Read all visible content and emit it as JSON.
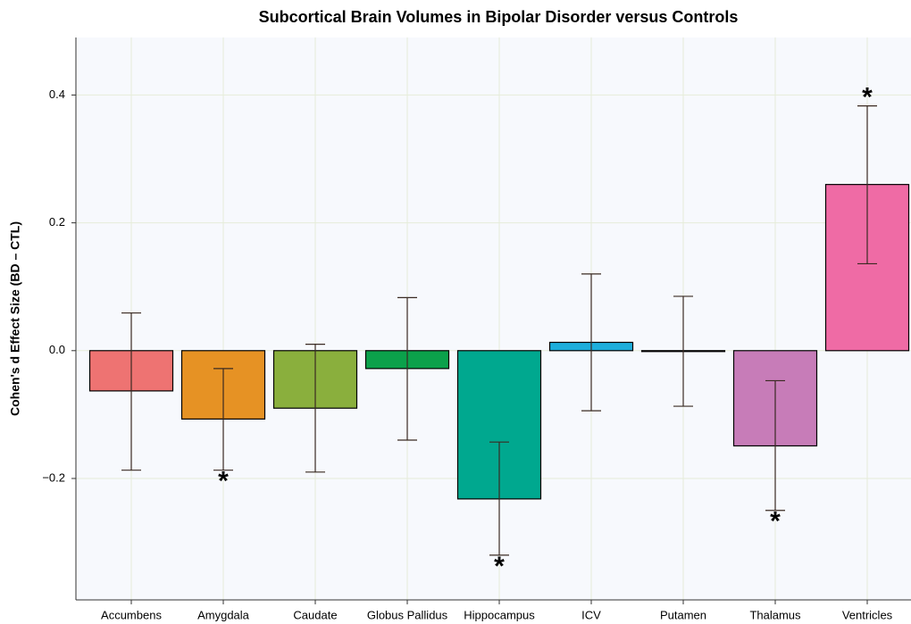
{
  "chart_data": {
    "type": "bar",
    "title": "Subcortical Brain Volumes in Bipolar Disorder versus Controls",
    "y_label": "Cohen's d Effect Size (BD – CTL)",
    "categories": [
      "Accumbens",
      "Amygdala",
      "Caudate",
      "Globus Pallidus",
      "Hippocampus",
      "ICV",
      "Putamen",
      "Thalamus",
      "Ventricles"
    ],
    "values": [
      -0.063,
      -0.107,
      -0.09,
      -0.028,
      -0.232,
      0.013,
      -0.001,
      -0.149,
      0.26
    ],
    "lower": [
      -0.187,
      -0.187,
      -0.19,
      -0.14,
      -0.32,
      -0.094,
      -0.087,
      -0.25,
      0.136
    ],
    "upper": [
      0.059,
      -0.028,
      0.01,
      0.083,
      -0.143,
      0.12,
      0.085,
      -0.047,
      0.383
    ],
    "significance": [
      null,
      "*",
      null,
      null,
      "*",
      null,
      null,
      "*",
      "*"
    ],
    "colors": [
      "#ee7372",
      "#e69224",
      "#8aaf3d",
      "#0ba14b",
      "#00a88f",
      "#1eaedb",
      "#6b8bd0",
      "#c77cb8",
      "#ef6ba5"
    ],
    "ylim": [
      -0.39,
      0.49
    ],
    "yticks": [
      {
        "value": -0.2,
        "label": "−0.2"
      },
      {
        "value": 0,
        "label": "0.0"
      },
      0.2,
      0.4
    ],
    "grid": true
  }
}
